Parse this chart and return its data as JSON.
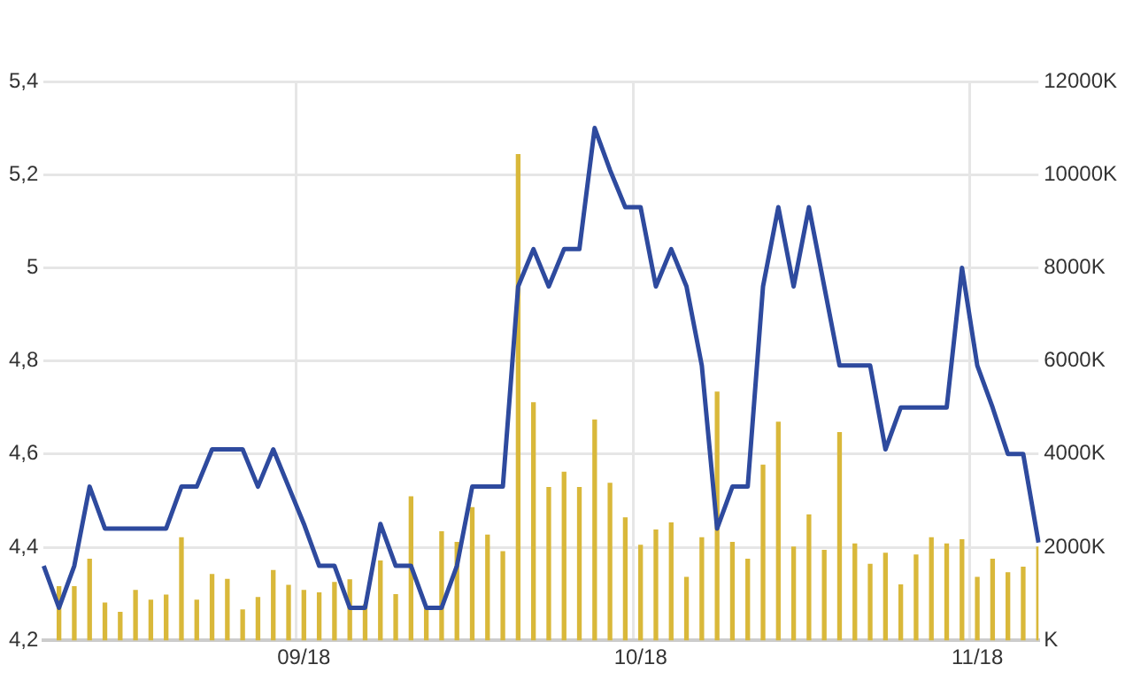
{
  "chart_data": {
    "type": "line",
    "categories": [
      null,
      null,
      null,
      null,
      null,
      null,
      null,
      null,
      null,
      null,
      null,
      null,
      null,
      null,
      null,
      null,
      null,
      "09/18",
      null,
      null,
      null,
      null,
      null,
      null,
      null,
      null,
      null,
      null,
      null,
      null,
      null,
      null,
      null,
      null,
      null,
      null,
      null,
      null,
      null,
      "10/18",
      null,
      null,
      null,
      null,
      null,
      null,
      null,
      null,
      null,
      null,
      null,
      null,
      null,
      null,
      null,
      null,
      null,
      null,
      null,
      null,
      null,
      "11/18",
      null,
      null,
      null,
      null
    ],
    "series": [
      {
        "type": "bar",
        "axis": "y2",
        "color": "#d9b83a",
        "values": [
          null,
          1150,
          1150,
          1740,
          800,
          600,
          1070,
          860,
          970,
          2200,
          860,
          1410,
          1310,
          650,
          920,
          1500,
          1180,
          1070,
          1020,
          1240,
          1300,
          760,
          1700,
          980,
          3080,
          700,
          2330,
          2100,
          2850,
          2260,
          1900,
          10430,
          5100,
          3280,
          3610,
          3280,
          4730,
          3370,
          2630,
          2040,
          2370,
          2520,
          1350,
          2200,
          5330,
          2100,
          1740,
          3760,
          4680,
          2000,
          2690,
          1930,
          4460,
          2070,
          1630,
          1870,
          1190,
          1830,
          2200,
          2070,
          2160,
          1350,
          1740,
          1450,
          1570,
          2000
        ]
      },
      {
        "color": "#2e4a9e",
        "values": [
          4.36,
          4.27,
          4.36,
          4.53,
          4.44,
          4.44,
          4.44,
          4.44,
          4.44,
          4.53,
          4.53,
          4.61,
          4.61,
          4.61,
          4.53,
          4.61,
          4.53,
          4.45,
          4.36,
          4.36,
          4.27,
          4.27,
          4.45,
          4.36,
          4.36,
          4.27,
          4.27,
          4.36,
          4.53,
          4.53,
          4.53,
          4.96,
          5.04,
          4.96,
          5.04,
          5.04,
          5.3,
          5.21,
          5.13,
          5.13,
          4.96,
          5.04,
          4.96,
          4.79,
          4.44,
          4.53,
          4.53,
          4.96,
          5.13,
          4.96,
          5.13,
          4.96,
          4.79,
          4.79,
          4.79,
          4.61,
          4.7,
          4.7,
          4.7,
          4.7,
          5,
          4.79,
          4.7,
          4.6,
          4.6,
          4.41
        ]
      }
    ],
    "ylim": [
      4.2,
      5.4
    ],
    "yticks": [
      {
        "value": 4.2,
        "label": "4,2"
      },
      {
        "value": 4.4,
        "label": "4,4"
      },
      {
        "value": 4.6,
        "label": "4,6"
      },
      {
        "value": 4.8,
        "label": "4,8"
      },
      5,
      {
        "value": 5.2,
        "label": "5,2"
      },
      {
        "value": 5.4,
        "label": "5,4"
      }
    ],
    "y2lim": [
      0,
      12000
    ],
    "y2ticks": [
      {
        "value": 0,
        "label": "K"
      },
      {
        "value": 2000,
        "label": "2000K"
      },
      {
        "value": 4000,
        "label": "4000K"
      },
      {
        "value": 6000,
        "label": "6000K"
      },
      {
        "value": 8000,
        "label": "8000K"
      },
      {
        "value": 10000,
        "label": "10000K"
      },
      {
        "value": 12000,
        "label": "12000K"
      }
    ],
    "grid": true,
    "legend": false,
    "marker": "none",
    "line_style": "solid"
  }
}
